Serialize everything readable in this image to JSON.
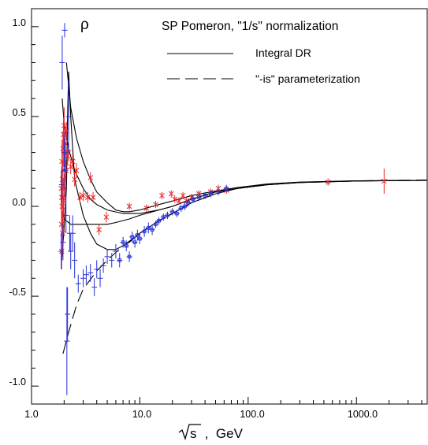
{
  "chart_data": {
    "type": "scatter",
    "title": "SP Pomeron, \"1/s\" normalization",
    "panel_label": "ρ",
    "xlabel_sqrt_symbol": "s",
    "xlabel_unit": " ,  GeV",
    "xscale": "log",
    "xlim": [
      1.0,
      4500.0
    ],
    "ylim": [
      -1.1,
      1.1
    ],
    "grid": false,
    "legend_position": "top-right",
    "x_ticks": [
      {
        "value": 1.0,
        "label": "1.0"
      },
      {
        "value": 10.0,
        "label": "10.0"
      },
      {
        "value": 100.0,
        "label": "100.0"
      },
      {
        "value": 1000.0,
        "label": "1000.0"
      }
    ],
    "y_ticks": [
      {
        "value": 1.0,
        "label": "1.0"
      },
      {
        "value": 0.5,
        "label": "0.5"
      },
      {
        "value": 0.0,
        "label": "0.0"
      },
      {
        "value": -0.5,
        "label": "-0.5"
      },
      {
        "value": -1.0,
        "label": "-1.0"
      }
    ],
    "legend": [
      {
        "label": "Integral DR",
        "style": "solid"
      },
      {
        "label": "\"-is\" parameterization",
        "style": "dashed"
      }
    ],
    "colors": {
      "pp": "#e8262a",
      "pbarp": "#2530d8",
      "curve": "#000000"
    },
    "curves": [
      {
        "style": "solid",
        "points": [
          [
            2.1,
            0.8
          ],
          [
            2.3,
            0.55
          ],
          [
            2.6,
            0.38
          ],
          [
            3.0,
            0.25
          ],
          [
            3.5,
            0.15
          ],
          [
            4.0,
            0.08
          ],
          [
            5.0,
            0.02
          ],
          [
            6.0,
            -0.02
          ],
          [
            7.0,
            -0.03
          ],
          [
            8.0,
            -0.03
          ],
          [
            10.0,
            -0.02
          ],
          [
            15.0,
            0.01
          ],
          [
            20.0,
            0.03
          ],
          [
            30.0,
            0.06
          ],
          [
            50.0,
            0.085
          ],
          [
            80.0,
            0.105
          ],
          [
            150.0,
            0.125
          ],
          [
            300.0,
            0.135
          ],
          [
            1000.0,
            0.142
          ],
          [
            4500.0,
            0.145
          ]
        ]
      },
      {
        "style": "solid",
        "points": [
          [
            1.92,
            0.6
          ],
          [
            2.0,
            0.46
          ],
          [
            2.2,
            0.32
          ],
          [
            2.5,
            0.2
          ],
          [
            3.0,
            0.1
          ],
          [
            3.5,
            0.04
          ],
          [
            4.0,
            0.01
          ],
          [
            5.0,
            -0.02
          ],
          [
            7.0,
            -0.04
          ],
          [
            10.0,
            -0.04
          ],
          [
            15.0,
            -0.02
          ],
          [
            20.0,
            0.0
          ],
          [
            30.0,
            0.04
          ],
          [
            50.0,
            0.08
          ],
          [
            80.0,
            0.1
          ],
          [
            150.0,
            0.12
          ],
          [
            300.0,
            0.133
          ],
          [
            1000.0,
            0.141
          ],
          [
            4500.0,
            0.145
          ]
        ]
      },
      {
        "style": "solid",
        "points": [
          [
            1.9,
            -0.02
          ],
          [
            2.0,
            -0.07
          ],
          [
            2.3,
            -0.1
          ],
          [
            3.0,
            -0.1
          ],
          [
            4.0,
            -0.1
          ],
          [
            5.0,
            -0.1
          ],
          [
            6.0,
            -0.09
          ],
          [
            8.0,
            -0.07
          ],
          [
            10.0,
            -0.05
          ],
          [
            15.0,
            -0.02
          ],
          [
            20.0,
            0.0
          ],
          [
            30.0,
            0.04
          ],
          [
            50.0,
            0.08
          ],
          [
            80.0,
            0.1
          ],
          [
            150.0,
            0.12
          ],
          [
            300.0,
            0.133
          ],
          [
            1000.0,
            0.141
          ],
          [
            4500.0,
            0.145
          ]
        ]
      },
      {
        "style": "solid",
        "points": [
          [
            1.9,
            -0.3
          ],
          [
            2.0,
            -0.12
          ],
          [
            2.1,
            0.1
          ],
          [
            2.15,
            0.5
          ],
          [
            2.2,
            0.75
          ],
          [
            2.3,
            0.5
          ],
          [
            2.5,
            0.15
          ],
          [
            3.0,
            -0.05
          ],
          [
            3.5,
            -0.15
          ],
          [
            4.0,
            -0.21
          ],
          [
            5.0,
            -0.24
          ],
          [
            6.0,
            -0.24
          ],
          [
            8.0,
            -0.2
          ],
          [
            10.0,
            -0.15
          ],
          [
            15.0,
            -0.08
          ],
          [
            20.0,
            -0.04
          ],
          [
            30.0,
            0.02
          ],
          [
            50.0,
            0.07
          ],
          [
            80.0,
            0.1
          ],
          [
            150.0,
            0.12
          ],
          [
            300.0,
            0.133
          ],
          [
            1000.0,
            0.141
          ],
          [
            4500.0,
            0.145
          ]
        ]
      },
      {
        "style": "dashed",
        "points": [
          [
            1.95,
            -0.82
          ],
          [
            2.2,
            -0.7
          ],
          [
            2.6,
            -0.55
          ],
          [
            3.0,
            -0.46
          ],
          [
            4.0,
            -0.36
          ],
          [
            5.0,
            -0.3
          ],
          [
            7.0,
            -0.22
          ],
          [
            10.0,
            -0.15
          ],
          [
            15.0,
            -0.08
          ],
          [
            20.0,
            -0.04
          ],
          [
            30.0,
            0.02
          ],
          [
            50.0,
            0.07
          ],
          [
            80.0,
            0.1
          ],
          [
            150.0,
            0.123
          ],
          [
            300.0,
            0.134
          ],
          [
            1000.0,
            0.142
          ],
          [
            4500.0,
            0.147
          ]
        ]
      }
    ],
    "series": [
      {
        "name": "pp",
        "marker": "x",
        "points": [
          [
            1.88,
            0.1,
            0.1
          ],
          [
            1.89,
            -0.1,
            0.15
          ],
          [
            1.9,
            0.05,
            0.15
          ],
          [
            1.9,
            -0.25,
            0.1
          ],
          [
            1.91,
            0.25,
            0.12
          ],
          [
            1.92,
            0.0,
            0.12
          ],
          [
            1.93,
            0.15,
            0.1
          ],
          [
            1.94,
            -0.15,
            0.1
          ],
          [
            1.95,
            0.32,
            0.1
          ],
          [
            1.96,
            0.05,
            0.1
          ],
          [
            1.97,
            0.4,
            0.08
          ],
          [
            1.98,
            -0.05,
            0.1
          ],
          [
            1.99,
            0.2,
            0.1
          ],
          [
            2.0,
            0.45,
            0.1
          ],
          [
            2.01,
            0.1,
            0.08
          ],
          [
            2.02,
            0.3,
            0.08
          ],
          [
            2.05,
            0.35,
            0.08
          ],
          [
            2.08,
            0.2,
            0.06
          ],
          [
            2.1,
            0.42,
            0.05
          ],
          [
            2.15,
            0.28,
            0.05
          ],
          [
            2.2,
            0.3,
            0.05
          ],
          [
            2.3,
            0.22,
            0.04
          ],
          [
            2.4,
            0.25,
            0.04
          ],
          [
            2.5,
            0.15,
            0.04
          ],
          [
            2.6,
            0.2,
            0.04
          ],
          [
            2.8,
            0.05,
            0.03
          ],
          [
            3.0,
            0.06,
            0.03
          ],
          [
            3.3,
            0.05,
            0.03
          ],
          [
            3.5,
            0.16,
            0.03
          ],
          [
            3.7,
            0.05,
            0.03
          ],
          [
            4.2,
            -0.13,
            0.03
          ],
          [
            4.9,
            -0.06,
            0.03
          ],
          [
            8.0,
            0.0,
            0.02
          ],
          [
            11.5,
            -0.01,
            0.02
          ],
          [
            14.0,
            0.01,
            0.02
          ],
          [
            16.0,
            0.06,
            0.02
          ],
          [
            19.5,
            0.07,
            0.02
          ],
          [
            21.0,
            0.04,
            0.02
          ],
          [
            23.0,
            0.03,
            0.02
          ],
          [
            25.0,
            0.06,
            0.02
          ],
          [
            27.0,
            0.03,
            0.02
          ],
          [
            30.0,
            0.05,
            0.02
          ],
          [
            35.0,
            0.07,
            0.02
          ],
          [
            45.0,
            0.08,
            0.02
          ],
          [
            53.0,
            0.1,
            0.02
          ],
          [
            63.0,
            0.09,
            0.02
          ],
          [
            546.0,
            0.135,
            0.02
          ],
          [
            1800.0,
            0.14,
            0.07
          ]
        ]
      },
      {
        "name": "pbarp",
        "marker": "plus",
        "points": [
          [
            1.88,
            -0.25,
            0.1
          ],
          [
            1.9,
            0.12,
            0.1
          ],
          [
            1.92,
            0.8,
            0.15
          ],
          [
            1.95,
            -0.2,
            0.1
          ],
          [
            2.0,
            0.3,
            0.1
          ],
          [
            2.02,
            0.98,
            0.04
          ],
          [
            2.05,
            0.2,
            0.15
          ],
          [
            2.08,
            -0.05,
            0.1
          ],
          [
            2.12,
            -0.75,
            0.3
          ],
          [
            2.15,
            -0.6,
            0.15
          ],
          [
            2.2,
            0.5,
            0.2
          ],
          [
            2.25,
            -0.15,
            0.1
          ],
          [
            2.3,
            -0.25,
            0.1
          ],
          [
            2.4,
            -0.15,
            0.1
          ],
          [
            2.5,
            -0.3,
            0.1
          ],
          [
            2.7,
            -0.43,
            0.05
          ],
          [
            3.0,
            -0.4,
            0.05
          ],
          [
            3.2,
            -0.38,
            0.05
          ],
          [
            3.5,
            -0.37,
            0.05
          ],
          [
            3.8,
            -0.45,
            0.05
          ],
          [
            4.0,
            -0.35,
            0.05
          ],
          [
            4.3,
            -0.4,
            0.05
          ],
          [
            4.6,
            -0.33,
            0.04
          ],
          [
            5.0,
            -0.28,
            0.04
          ],
          [
            5.5,
            -0.3,
            0.04
          ],
          [
            6.0,
            -0.25,
            0.04
          ],
          [
            6.5,
            -0.3,
            0.04
          ],
          [
            7.0,
            -0.2,
            0.03
          ],
          [
            7.5,
            -0.22,
            0.03
          ],
          [
            8.0,
            -0.28,
            0.03
          ],
          [
            8.5,
            -0.17,
            0.03
          ],
          [
            9.0,
            -0.2,
            0.03
          ],
          [
            9.5,
            -0.16,
            0.03
          ],
          [
            10.0,
            -0.18,
            0.03
          ],
          [
            11.0,
            -0.14,
            0.03
          ],
          [
            12.0,
            -0.12,
            0.03
          ],
          [
            13.0,
            -0.13,
            0.03
          ],
          [
            14.0,
            -0.1,
            0.02
          ],
          [
            15.0,
            -0.08,
            0.02
          ],
          [
            16.5,
            -0.06,
            0.02
          ],
          [
            18.0,
            -0.05,
            0.02
          ],
          [
            20.0,
            -0.03,
            0.02
          ],
          [
            22.0,
            -0.04,
            0.02
          ],
          [
            24.0,
            -0.01,
            0.02
          ],
          [
            26.0,
            0.0,
            0.02
          ],
          [
            28.0,
            0.02,
            0.02
          ],
          [
            31.0,
            0.04,
            0.02
          ],
          [
            35.0,
            0.05,
            0.02
          ],
          [
            40.0,
            0.06,
            0.02
          ],
          [
            45.0,
            0.07,
            0.02
          ],
          [
            53.0,
            0.08,
            0.02
          ],
          [
            63.0,
            0.1,
            0.02
          ]
        ]
      }
    ]
  }
}
